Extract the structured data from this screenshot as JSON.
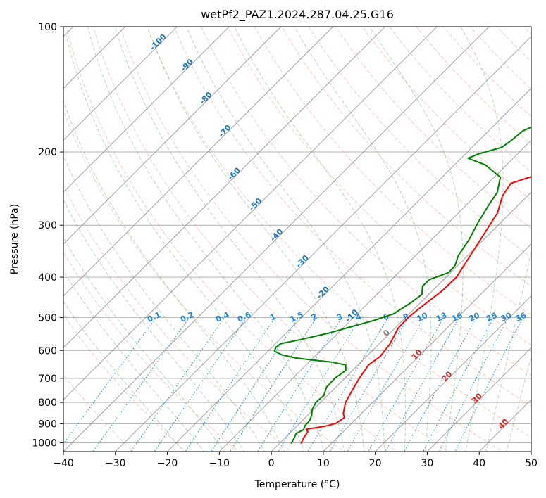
{
  "chart_data": {
    "type": "line",
    "title": "wetPf2_PAZ1.2024.287.04.25.G16",
    "xlabel": "Temperature (°C)",
    "ylabel": "Pressure (hPa)",
    "xlim": [
      -40,
      50
    ],
    "ylim": [
      1050,
      100
    ],
    "y_scale": "log",
    "grid": true,
    "x_ticks": [
      "−40",
      "−30",
      "−20",
      "−10",
      "0",
      "10",
      "20",
      "30",
      "40",
      "50"
    ],
    "x_tick_values": [
      -40,
      -30,
      -20,
      -10,
      0,
      10,
      20,
      30,
      40,
      50
    ],
    "y_ticks": [
      "1000",
      "900",
      "800",
      "700",
      "600",
      "500",
      "400",
      "300",
      "200",
      "100"
    ],
    "y_tick_values": [
      1000,
      900,
      800,
      700,
      600,
      500,
      400,
      300,
      200,
      100
    ],
    "series": [
      {
        "color": "#ff0000",
        "points": [
          [
            1005,
            4.2
          ],
          [
            975,
            3.6
          ],
          [
            940,
            3.2
          ],
          [
            928,
            2.4
          ],
          [
            920,
            4.0
          ],
          [
            910,
            5.8
          ],
          [
            898,
            7.0
          ],
          [
            870,
            7.5
          ],
          [
            850,
            6.5
          ],
          [
            800,
            4.8
          ],
          [
            750,
            3.8
          ],
          [
            700,
            2.8
          ],
          [
            650,
            2.0
          ],
          [
            620,
            2.6
          ],
          [
            580,
            2.1
          ],
          [
            530,
            0.6
          ],
          [
            500,
            0.5
          ],
          [
            470,
            1.0
          ],
          [
            430,
            1.9
          ],
          [
            400,
            2.0
          ],
          [
            360,
            0.7
          ],
          [
            310,
            -1.2
          ],
          [
            280,
            -2.5
          ],
          [
            255,
            -4.8
          ],
          [
            238,
            -5.6
          ],
          [
            230,
            -3.2
          ],
          [
            220,
            1.6
          ],
          [
            205,
            6.5
          ],
          [
            195,
            9.9
          ],
          [
            180,
            13.5
          ],
          [
            165,
            16.5
          ],
          [
            150,
            19.5
          ],
          [
            140,
            21.4
          ],
          [
            130,
            23.3
          ],
          [
            120,
            25.5
          ],
          [
            110,
            27.8
          ],
          [
            100,
            30.3
          ]
        ]
      },
      {
        "color": "#008000",
        "points": [
          [
            1005,
            2.3
          ],
          [
            975,
            1.8
          ],
          [
            950,
            1.3
          ],
          [
            930,
            2.0
          ],
          [
            910,
            1.5
          ],
          [
            885,
            1.4
          ],
          [
            860,
            0.8
          ],
          [
            830,
            -0.3
          ],
          [
            800,
            -0.9
          ],
          [
            770,
            -0.7
          ],
          [
            735,
            -1.8
          ],
          [
            700,
            -1.9
          ],
          [
            670,
            -1.3
          ],
          [
            650,
            -2.4
          ],
          [
            640,
            -5.6
          ],
          [
            633,
            -9.5
          ],
          [
            625,
            -13.5
          ],
          [
            615,
            -16.5
          ],
          [
            603,
            -18.7
          ],
          [
            590,
            -19.2
          ],
          [
            578,
            -19.0
          ],
          [
            565,
            -16.0
          ],
          [
            545,
            -11.8
          ],
          [
            525,
            -8.5
          ],
          [
            508,
            -5.5
          ],
          [
            490,
            -3.0
          ],
          [
            460,
            -1.8
          ],
          [
            440,
            -1.3
          ],
          [
            420,
            -2.8
          ],
          [
            405,
            -2.7
          ],
          [
            390,
            -0.4
          ],
          [
            375,
            -0.5
          ],
          [
            355,
            -1.8
          ],
          [
            325,
            -2.8
          ],
          [
            295,
            -4.4
          ],
          [
            270,
            -5.6
          ],
          [
            250,
            -6.5
          ],
          [
            230,
            -8.8
          ],
          [
            215,
            -14.0
          ],
          [
            207,
            -18.7
          ],
          [
            202,
            -17.4
          ],
          [
            195,
            -14.3
          ],
          [
            188,
            -13.8
          ],
          [
            178,
            -13.4
          ],
          [
            170,
            -11.4
          ],
          [
            160,
            -10.7
          ],
          [
            150,
            -10.2
          ],
          [
            140,
            -10.0
          ],
          [
            130,
            -8.7
          ],
          [
            125,
            -7.2
          ],
          [
            115,
            -5.2
          ],
          [
            105,
            -1.7
          ],
          [
            100,
            -0.5
          ]
        ]
      }
    ],
    "background_lines": {
      "isotherms_skewed": true,
      "dry_adiabats": "dashed, light red",
      "moist_adiabats": "dashed, light green",
      "mixing_ratio_lines": "dotted, blue",
      "isotherm_labels": [
        "-100",
        "-90",
        "-80",
        "-70",
        "-60",
        "-50",
        "-40",
        "-30",
        "-20",
        "-10",
        "0",
        "10",
        "20",
        "30",
        "40"
      ],
      "mixing_ratio_labels": [
        "0.1",
        "0.2",
        "0.4",
        "0.6",
        "1",
        "1.5",
        "2",
        "3",
        "4",
        "6",
        "8",
        "10",
        "13",
        "16",
        "20",
        "25",
        "30",
        "36"
      ]
    }
  }
}
